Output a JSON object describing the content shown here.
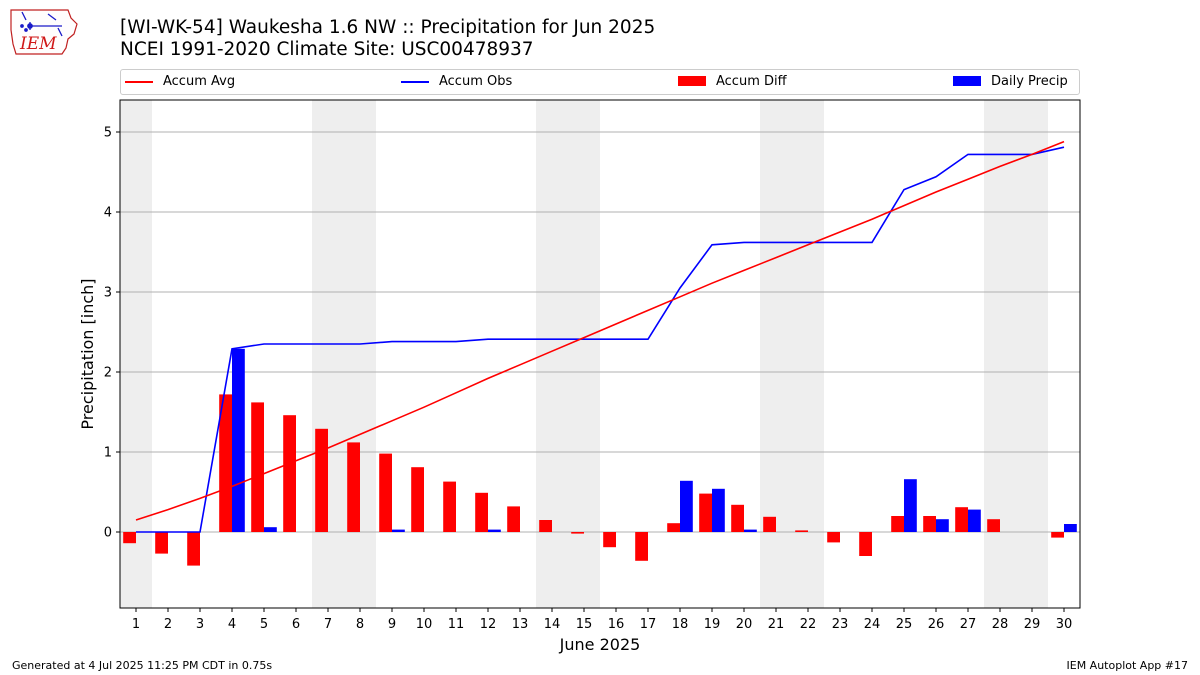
{
  "header": {
    "title_line1": "[WI-WK-54] Waukesha 1.6 NW :: Precipitation for Jun 2025",
    "title_line2": "NCEI 1991-2020 Climate Site: USC00478937",
    "logo_text": "IEM"
  },
  "footer": {
    "left": "Generated at 4 Jul 2025 11:25 PM CDT in 0.75s",
    "right": "IEM Autoplot App #17"
  },
  "colors": {
    "avg": "#ff0000",
    "obs": "#0000ff",
    "diff": "#ff0000",
    "daily": "#0000ff",
    "weekend_shade": "#eeeeee",
    "grid": "#b0b0b0"
  },
  "chart_data": {
    "type": "bar",
    "xlabel": "June 2025",
    "ylabel": "Precipitation [inch]",
    "xlim": [
      0.5,
      30.5
    ],
    "ylim": [
      -0.95,
      5.4
    ],
    "yticks": [
      0,
      1,
      2,
      3,
      4,
      5
    ],
    "grid": true,
    "legend_position": "top",
    "legend": [
      "Accum Avg",
      "Accum Obs",
      "Accum Diff",
      "Daily Precip"
    ],
    "weekend_days": [
      1,
      7,
      8,
      14,
      15,
      21,
      22,
      28,
      29
    ],
    "x": [
      1,
      2,
      3,
      4,
      5,
      6,
      7,
      8,
      9,
      10,
      11,
      12,
      13,
      14,
      15,
      16,
      17,
      18,
      19,
      20,
      21,
      22,
      23,
      24,
      25,
      26,
      27,
      28,
      29,
      30
    ],
    "series": [
      {
        "name": "Accum Avg",
        "kind": "line",
        "values": [
          0.15,
          0.28,
          0.42,
          0.57,
          0.73,
          0.89,
          1.05,
          1.22,
          1.39,
          1.56,
          1.74,
          1.92,
          2.09,
          2.26,
          2.43,
          2.6,
          2.77,
          2.94,
          3.11,
          3.27,
          3.43,
          3.59,
          3.75,
          3.91,
          4.08,
          4.25,
          4.41,
          4.57,
          4.72,
          4.88
        ]
      },
      {
        "name": "Accum Obs",
        "kind": "line",
        "values": [
          0.0,
          0.0,
          0.0,
          2.29,
          2.35,
          2.35,
          2.35,
          2.35,
          2.38,
          2.38,
          2.38,
          2.41,
          2.41,
          2.41,
          2.41,
          2.41,
          2.41,
          3.05,
          3.59,
          3.62,
          3.62,
          3.62,
          3.62,
          3.62,
          4.28,
          4.44,
          4.72,
          4.72,
          4.72,
          4.81
        ]
      },
      {
        "name": "Accum Diff",
        "kind": "bar",
        "values": [
          -0.14,
          -0.27,
          -0.42,
          1.72,
          1.62,
          1.46,
          1.29,
          1.12,
          0.98,
          0.81,
          0.63,
          0.49,
          0.32,
          0.15,
          -0.02,
          -0.19,
          -0.36,
          0.11,
          0.48,
          0.34,
          0.19,
          0.02,
          -0.13,
          -0.3,
          0.2,
          0.2,
          0.31,
          0.16,
          0.0,
          -0.07
        ]
      },
      {
        "name": "Daily Precip",
        "kind": "bar",
        "values": [
          0.0,
          0.0,
          0.0,
          2.29,
          0.06,
          0.0,
          0.0,
          0.0,
          0.03,
          0.0,
          0.0,
          0.03,
          0.0,
          0.0,
          0.0,
          0.0,
          0.0,
          0.64,
          0.54,
          0.03,
          0.0,
          0.0,
          0.0,
          0.0,
          0.66,
          0.16,
          0.28,
          0.0,
          0.0,
          0.1
        ]
      }
    ]
  }
}
